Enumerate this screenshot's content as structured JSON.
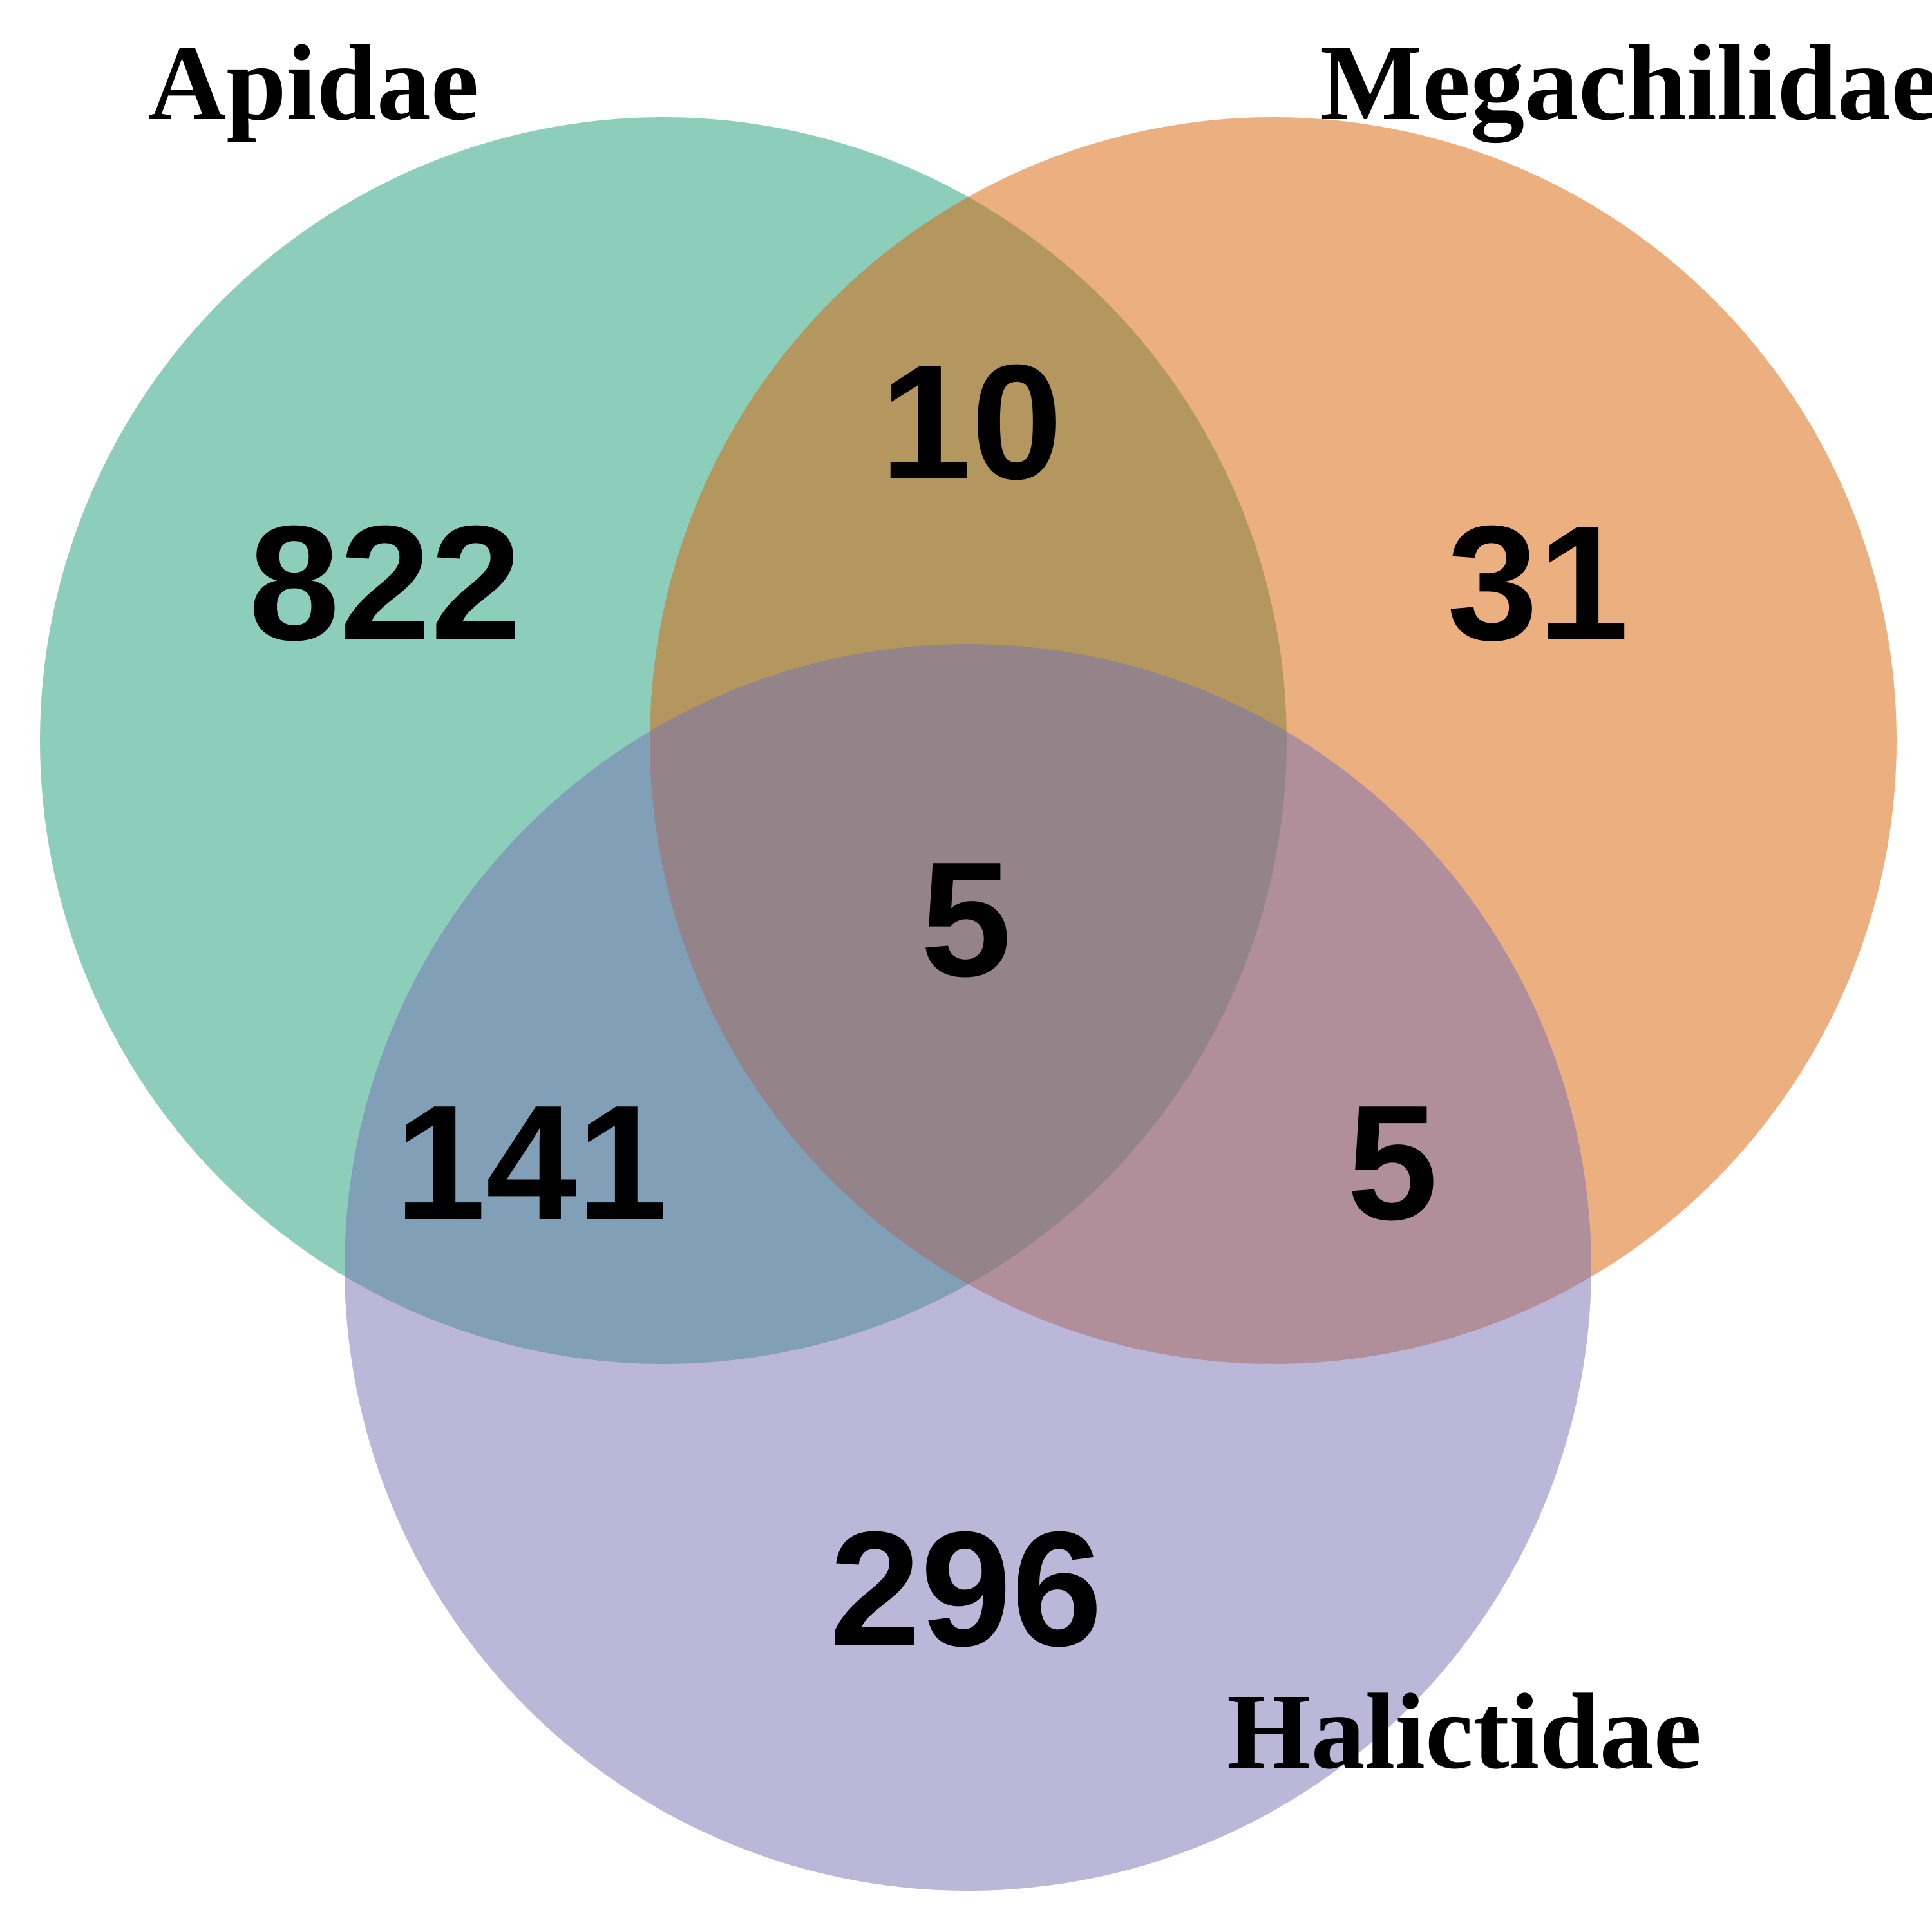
{
  "sets": [
    {
      "id": "apidae",
      "label": "Apidae",
      "color": "#1b9e77"
    },
    {
      "id": "megachilidae",
      "label": "Megachilidae",
      "color": "#d95f02"
    },
    {
      "id": "halictidae",
      "label": "Halictidae",
      "color": "#7570b3"
    }
  ],
  "regions": {
    "apidae_only": "822",
    "megachilidae_only": "31",
    "halictidae_only": "296",
    "apidae_megachilidae": "10",
    "apidae_halictidae": "141",
    "megachilidae_halictidae": "5",
    "all_three": "5"
  },
  "circle_opacity": 0.5
}
